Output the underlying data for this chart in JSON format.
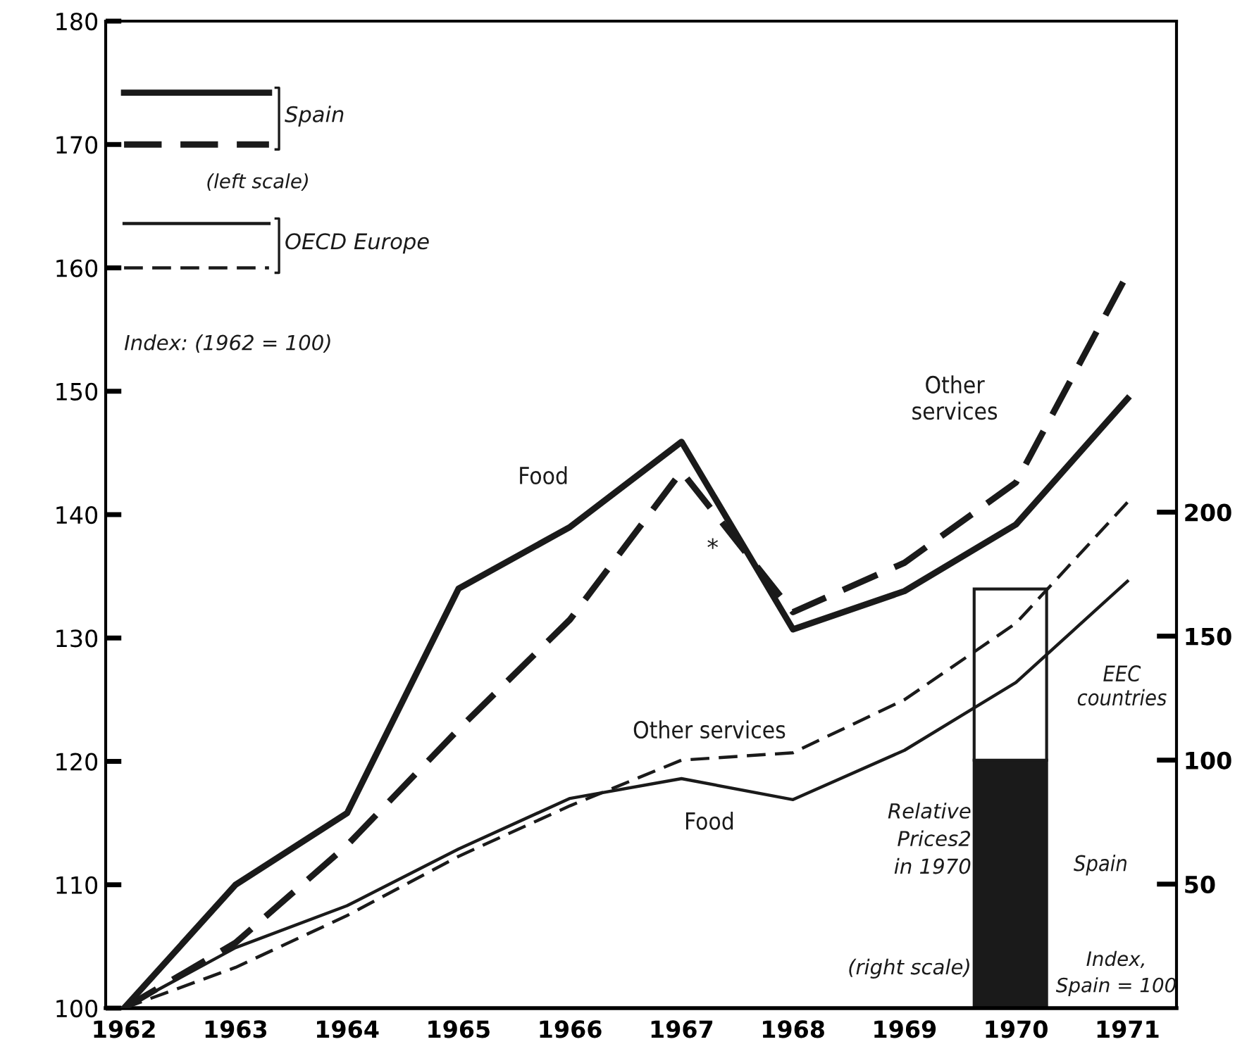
{
  "chart_data": {
    "type": "line",
    "categories": [
      "1962",
      "1963",
      "1964",
      "1965",
      "1966",
      "1967",
      "1968",
      "1969",
      "1970",
      "1971"
    ],
    "series": [
      {
        "name": "Food",
        "color": "#1a1a1a",
        "line_style": "solid",
        "values": [
          100,
          110,
          115.8,
          134,
          139,
          145.9,
          130.7,
          133.8,
          139.2,
          149.4
        ]
      },
      {
        "name": "Other services",
        "color": "#1a1a1a",
        "line_style": "dashed",
        "values": [
          100,
          105.3,
          113.2,
          122.6,
          131.5,
          143.5,
          132.1,
          136.1,
          142.6,
          159.5
        ]
      },
      {
        "name": "Food",
        "color": "#1a1a1a",
        "line_style": "solid",
        "values": [
          100,
          104.9,
          108.3,
          112.9,
          117,
          118.6,
          116.9,
          120.9,
          126.4,
          134.6
        ]
      },
      {
        "name": "Other services",
        "color": "#1a1a1a",
        "line_style": "dashed",
        "values": [
          100,
          103.3,
          107.5,
          112.3,
          116.4,
          120.1,
          120.7,
          125,
          131.2,
          141
        ]
      },
      {
        "name": "Spain",
        "type": "bar",
        "axis": "y2",
        "color": "#1a1a1a",
        "values": [
          null,
          null,
          null,
          null,
          null,
          null,
          null,
          null,
          100,
          null
        ]
      },
      {
        "name": "EEC countries",
        "type": "bar",
        "axis": "y2",
        "color": "#ffffff",
        "values": [
          null,
          null,
          null,
          null,
          null,
          null,
          null,
          null,
          69,
          null
        ]
      }
    ],
    "stacked": true,
    "ylim": [
      100,
      180
    ],
    "yticks": [
      100,
      110,
      120,
      130,
      140,
      150,
      160,
      170,
      180
    ],
    "y2lim": [
      0,
      398
    ],
    "y2ticks": [
      50,
      100,
      150,
      200
    ],
    "grid": false,
    "marker": "none",
    "annotations": [
      "Spain",
      "(left scale)",
      "OECD Europe",
      "Index: (1962 = 100)",
      "*",
      "Relative\nPrices2\nin 1970",
      "(right scale)",
      "Index,\nSpain = 100"
    ]
  }
}
